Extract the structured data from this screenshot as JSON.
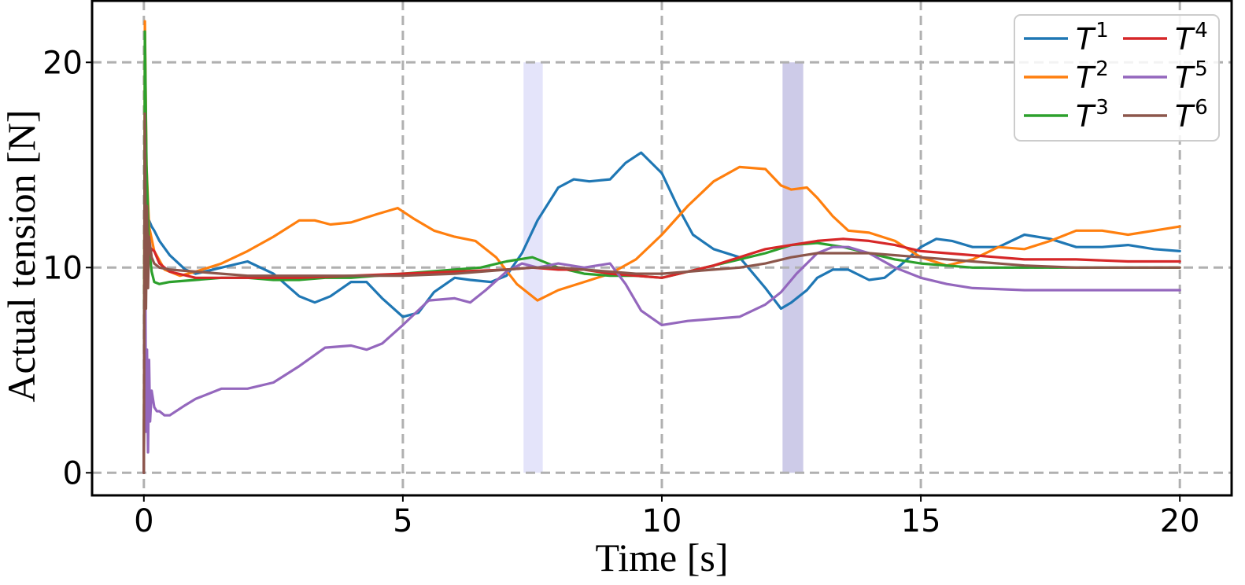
{
  "chart_data": {
    "type": "line",
    "xlabel": "Time [s]",
    "ylabel": "Actual tension [N]",
    "xlim": [
      -1,
      21
    ],
    "ylim": [
      -1.1,
      23
    ],
    "xticks": [
      0,
      5,
      10,
      15,
      20
    ],
    "yticks": [
      0,
      10,
      20
    ],
    "xtick_labels": [
      "0",
      "5",
      "10",
      "15",
      "20"
    ],
    "ytick_labels": [
      "0",
      "10",
      "20"
    ],
    "grid": true,
    "grid_style": "dashed",
    "legend_placement": "top-right",
    "legend_columns": 2,
    "shaded_regions": [
      {
        "x_start": 7.33,
        "x_end": 7.7,
        "y_start": 0,
        "y_end": 20,
        "color": "#e4e4fa"
      },
      {
        "x_start": 12.33,
        "x_end": 12.73,
        "y_start": 0,
        "y_end": 20,
        "color": "#cdcbe8"
      }
    ],
    "series": [
      {
        "name": "T",
        "sup": "1",
        "color": "#1f77b4",
        "x": [
          0,
          0.02,
          0.05,
          0.1,
          0.15,
          0.2,
          0.3,
          0.5,
          0.8,
          1.0,
          1.5,
          2.0,
          2.5,
          3.0,
          3.3,
          3.6,
          4.0,
          4.3,
          4.6,
          5.0,
          5.3,
          5.6,
          6.0,
          6.3,
          6.7,
          7.0,
          7.3,
          7.6,
          8.0,
          8.3,
          8.6,
          9.0,
          9.3,
          9.6,
          10.0,
          10.3,
          10.6,
          11.0,
          11.5,
          12.0,
          12.3,
          12.5,
          12.8,
          13.0,
          13.3,
          13.6,
          14.0,
          14.3,
          14.6,
          15.0,
          15.3,
          15.6,
          16.0,
          16.5,
          17.0,
          17.5,
          18.0,
          18.5,
          19.0,
          19.5,
          20.0
        ],
        "values": [
          0,
          14,
          11,
          12.3,
          12.0,
          11.8,
          11.3,
          10.6,
          9.9,
          9.7,
          10.0,
          10.3,
          9.7,
          8.6,
          8.3,
          8.6,
          9.3,
          9.3,
          8.5,
          7.6,
          7.8,
          8.8,
          9.5,
          9.4,
          9.3,
          9.6,
          10.7,
          12.3,
          13.9,
          14.3,
          14.2,
          14.3,
          15.1,
          15.6,
          14.6,
          13.0,
          11.6,
          10.9,
          10.5,
          9.0,
          8.0,
          8.3,
          8.9,
          9.5,
          9.9,
          9.9,
          9.4,
          9.5,
          10.1,
          11.0,
          11.4,
          11.3,
          11.0,
          11.0,
          11.6,
          11.4,
          11.0,
          11.0,
          11.1,
          10.9,
          10.8
        ]
      },
      {
        "name": "T",
        "sup": "2",
        "color": "#ff7f0e",
        "x": [
          0,
          0.02,
          0.05,
          0.1,
          0.2,
          0.4,
          0.7,
          1.0,
          1.5,
          2.0,
          2.5,
          3.0,
          3.3,
          3.6,
          4.0,
          4.5,
          4.9,
          5.2,
          5.6,
          6.0,
          6.4,
          6.8,
          7.2,
          7.6,
          8.0,
          8.5,
          9.0,
          9.5,
          10.0,
          10.5,
          11.0,
          11.5,
          12.0,
          12.3,
          12.5,
          12.8,
          13.0,
          13.3,
          13.6,
          14.0,
          14.5,
          15.0,
          15.5,
          16.0,
          16.5,
          17.0,
          17.5,
          18.0,
          18.5,
          19.0,
          19.5,
          20.0
        ],
        "values": [
          0,
          22,
          15,
          12,
          10.8,
          9.9,
          9.6,
          9.8,
          10.2,
          10.8,
          11.5,
          12.3,
          12.3,
          12.1,
          12.2,
          12.6,
          12.9,
          12.4,
          11.8,
          11.5,
          11.3,
          10.5,
          9.2,
          8.4,
          8.9,
          9.3,
          9.7,
          10.4,
          11.6,
          13.0,
          14.2,
          14.9,
          14.8,
          14.0,
          13.8,
          13.9,
          13.4,
          12.5,
          11.8,
          11.7,
          11.3,
          10.5,
          10.1,
          10.4,
          11.0,
          10.9,
          11.3,
          11.8,
          11.8,
          11.6,
          11.8,
          12.0
        ]
      },
      {
        "name": "T",
        "sup": "3",
        "color": "#2ca02c",
        "x": [
          0,
          0.02,
          0.05,
          0.1,
          0.15,
          0.2,
          0.3,
          0.5,
          1.0,
          1.5,
          2.0,
          2.5,
          3.0,
          3.5,
          4.0,
          4.5,
          5.0,
          5.5,
          6.0,
          6.5,
          7.0,
          7.5,
          8.0,
          8.5,
          9.0,
          9.5,
          10.0,
          10.5,
          11.0,
          11.5,
          12.0,
          12.5,
          13.0,
          13.5,
          14.0,
          14.5,
          15.0,
          15.5,
          16.0,
          17.0,
          18.0,
          19.0,
          20.0
        ],
        "values": [
          0,
          21.5,
          15,
          11,
          9.8,
          9.3,
          9.2,
          9.3,
          9.4,
          9.5,
          9.5,
          9.4,
          9.4,
          9.5,
          9.5,
          9.6,
          9.7,
          9.8,
          9.9,
          10.0,
          10.3,
          10.5,
          10.0,
          9.7,
          9.6,
          9.6,
          9.5,
          9.8,
          10.1,
          10.4,
          10.7,
          11.1,
          11.2,
          11.0,
          10.7,
          10.4,
          10.2,
          10.1,
          10.0,
          10.0,
          10.0,
          10.0,
          10.0
        ]
      },
      {
        "name": "T",
        "sup": "4",
        "color": "#d62728",
        "x": [
          0,
          0.02,
          0.05,
          0.1,
          0.2,
          0.3,
          0.5,
          1.0,
          1.5,
          2.0,
          3.0,
          4.0,
          5.0,
          6.0,
          7.0,
          7.5,
          8.0,
          8.5,
          9.0,
          9.5,
          10.0,
          10.5,
          11.0,
          11.5,
          12.0,
          12.5,
          13.0,
          13.5,
          14.0,
          14.5,
          15.0,
          16.0,
          17.0,
          18.0,
          19.0,
          20.0
        ],
        "values": [
          0,
          13,
          12,
          11,
          10.8,
          10.2,
          9.8,
          9.5,
          9.5,
          9.5,
          9.5,
          9.6,
          9.7,
          9.8,
          9.9,
          10.0,
          9.9,
          9.9,
          9.7,
          9.6,
          9.5,
          9.8,
          10.1,
          10.5,
          10.9,
          11.1,
          11.3,
          11.4,
          11.3,
          11.1,
          10.8,
          10.6,
          10.4,
          10.4,
          10.3,
          10.3
        ]
      },
      {
        "name": "T",
        "sup": "5",
        "color": "#9467bd",
        "x": [
          0,
          0.02,
          0.04,
          0.06,
          0.08,
          0.1,
          0.12,
          0.15,
          0.2,
          0.25,
          0.3,
          0.4,
          0.5,
          0.8,
          1.0,
          1.5,
          2.0,
          2.5,
          3.0,
          3.5,
          4.0,
          4.3,
          4.6,
          5.0,
          5.5,
          6.0,
          6.3,
          6.6,
          7.0,
          7.3,
          7.6,
          8.0,
          8.5,
          9.0,
          9.3,
          9.6,
          10.0,
          10.5,
          11.0,
          11.5,
          12.0,
          12.3,
          12.6,
          13.0,
          13.3,
          13.6,
          14.0,
          14.5,
          15.0,
          15.5,
          16.0,
          17.0,
          18.0,
          19.0,
          20.0
        ],
        "values": [
          0,
          15,
          2,
          6,
          1,
          5.5,
          2.5,
          4,
          3.2,
          3.0,
          3.0,
          2.8,
          2.8,
          3.3,
          3.6,
          4.1,
          4.1,
          4.4,
          5.2,
          6.1,
          6.2,
          6.0,
          6.3,
          7.2,
          8.4,
          8.5,
          8.3,
          8.9,
          9.8,
          10.2,
          10.0,
          10.2,
          10.0,
          10.2,
          9.2,
          7.9,
          7.2,
          7.4,
          7.5,
          7.6,
          8.2,
          8.8,
          9.7,
          10.7,
          11.0,
          11.0,
          10.7,
          10.0,
          9.5,
          9.2,
          9.0,
          8.9,
          8.9,
          8.9,
          8.9
        ]
      },
      {
        "name": "T",
        "sup": "6",
        "color": "#8c564b",
        "x": [
          0,
          0.02,
          0.04,
          0.06,
          0.08,
          0.1,
          0.15,
          0.2,
          0.3,
          0.5,
          1.0,
          1.5,
          2.0,
          3.0,
          4.0,
          5.0,
          6.0,
          7.0,
          7.5,
          8.0,
          8.5,
          9.0,
          9.5,
          10.0,
          10.5,
          11.0,
          11.5,
          12.0,
          12.5,
          13.0,
          13.5,
          14.0,
          15.0,
          16.0,
          17.0,
          18.0,
          19.0,
          20.0
        ],
        "values": [
          0,
          17.5,
          8,
          13,
          9,
          11.5,
          10.5,
          10.2,
          10.0,
          9.9,
          9.8,
          9.7,
          9.6,
          9.6,
          9.6,
          9.6,
          9.7,
          9.9,
          10.0,
          10.0,
          9.9,
          9.8,
          9.7,
          9.7,
          9.8,
          9.9,
          10.0,
          10.2,
          10.5,
          10.7,
          10.7,
          10.7,
          10.5,
          10.3,
          10.1,
          10.0,
          10.0,
          10.0
        ]
      }
    ]
  }
}
